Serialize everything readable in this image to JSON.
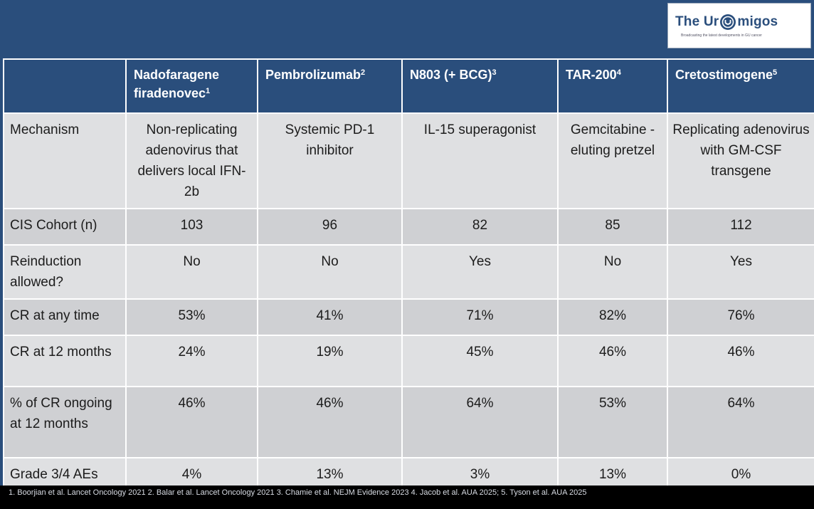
{
  "logo": {
    "text_before": "The Ur",
    "text_after": "migos",
    "tagline": "Broadcasting the latest developments in GU cancer",
    "icon": "uromigos-logo-icon"
  },
  "table": {
    "headers": [
      {
        "label": "",
        "sup": ""
      },
      {
        "label": "Nadofaragene firadenovec",
        "sup": "1"
      },
      {
        "label": "Pembrolizumab",
        "sup": "2"
      },
      {
        "label": "N803 (+ BCG)",
        "sup": "3"
      },
      {
        "label": "TAR-200",
        "sup": "4"
      },
      {
        "label": "Cretostimogene",
        "sup": "5"
      }
    ],
    "rows": [
      {
        "label": "Mechanism",
        "values": [
          "Non-replicating adenovirus that delivers local IFN-2b",
          "Systemic PD-1 inhibitor",
          "IL-15 superagonist",
          "Gemcitabine -eluting pretzel",
          "Replicating adenovirus with GM-CSF transgene"
        ]
      },
      {
        "label": "CIS Cohort (n)",
        "values": [
          "103",
          "96",
          "82",
          "85",
          "112"
        ]
      },
      {
        "label": "Reinduction allowed?",
        "values": [
          "No",
          "No",
          "Yes",
          "No",
          "Yes"
        ]
      },
      {
        "label": "CR at any time",
        "values": [
          "53%",
          "41%",
          "71%",
          "82%",
          "76%"
        ]
      },
      {
        "label": "CR at 12 months",
        "values": [
          "24%",
          "19%",
          "45%",
          "46%",
          "46%"
        ]
      },
      {
        "label": "% of CR ongoing at 12 months",
        "values": [
          "46%",
          "46%",
          "64%",
          "53%",
          "64%"
        ]
      },
      {
        "label": "Grade 3/4 AEs",
        "values": [
          "4%",
          "13%",
          "3%",
          "13%",
          "0%"
        ]
      }
    ]
  },
  "footer": {
    "references": "1. Boorjian et al. Lancet Oncology 2021 2. Balar et al. Lancet Oncology 2021 3. Chamie et al. NEJM Evidence 2023 4. Jacob et al. AUA 2025; 5. Tyson et al. AUA 2025"
  },
  "colors": {
    "header_blue": "#2a4e7c",
    "row_light": "#dfe0e2",
    "row_dark": "#cfd0d3",
    "footer_black": "#000000"
  }
}
